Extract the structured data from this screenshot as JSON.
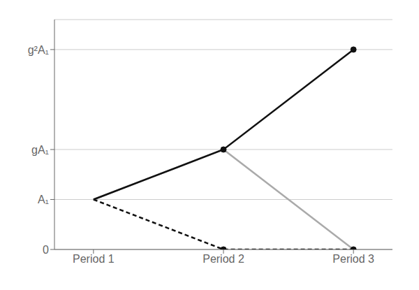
{
  "chart_data": {
    "type": "line",
    "x": [
      1,
      2,
      3
    ],
    "xlim": [
      0.7,
      3.3
    ],
    "xticks": [
      {
        "value": 1,
        "label": "Period 1"
      },
      {
        "value": 2,
        "label": "Period 2"
      },
      {
        "value": 3,
        "label": "Period 3"
      }
    ],
    "ylim": [
      0,
      4.6
    ],
    "yticks": [
      0,
      {
        "value": 1,
        "label": "A₁"
      },
      {
        "value": 2,
        "label": "gA₁"
      },
      {
        "value": 4,
        "label": "g²A₁"
      }
    ],
    "grid": true,
    "series": [
      {
        "color": "#aaaaaa",
        "line_style": "solid",
        "values": [
          1,
          2,
          0.0
        ]
      },
      {
        "color": "#111111",
        "line_style": "dashed",
        "marker": "circle",
        "values": [
          1,
          0.0,
          0.0
        ]
      },
      {
        "color": "#111111",
        "line_style": "solid",
        "marker": "circle",
        "values": [
          1,
          2,
          4
        ]
      }
    ]
  }
}
